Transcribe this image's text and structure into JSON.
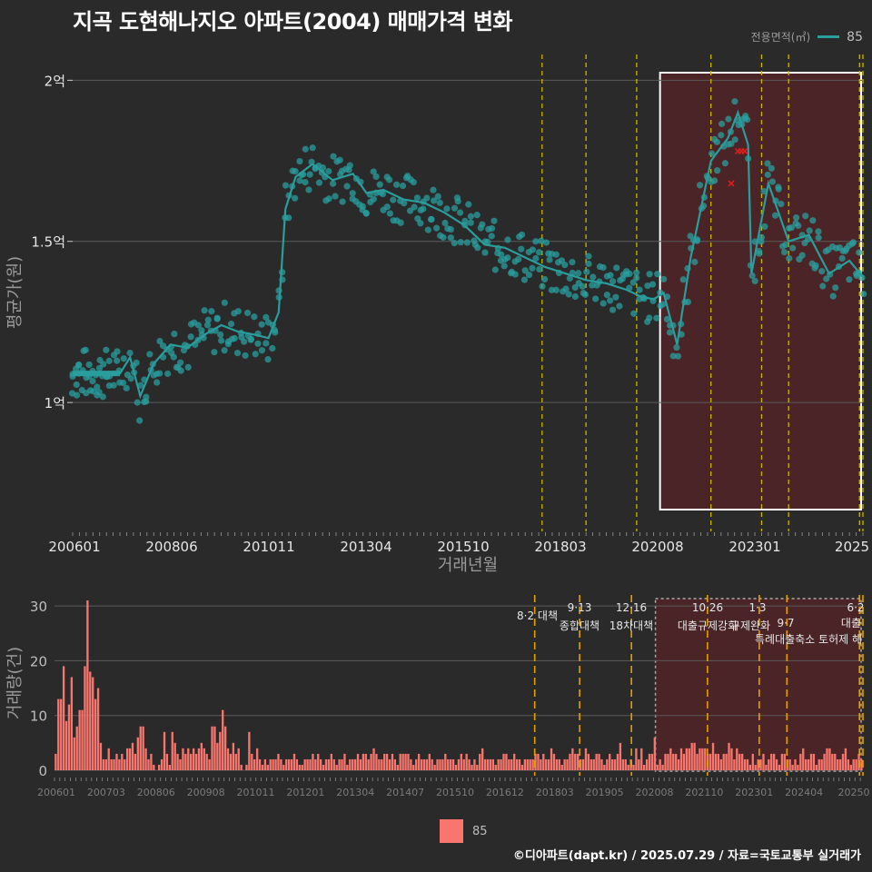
{
  "title": "지곡 도현해나지오 아파트(2004) 매매가격 변화",
  "legend_top": {
    "title": "전용면적(㎡)",
    "entry": "85",
    "color": "#2a9d9d"
  },
  "legend_bottom": {
    "entry": "85",
    "color": "#f8766d"
  },
  "caption": "©디아파트(dapt.kr) / 2025.07.29 / 자료=국토교통부 실거래가",
  "chart_data": [
    {
      "type": "line",
      "name": "price",
      "xlabel": "거래년월",
      "ylabel": "평균가(원)",
      "x_range": [
        "2006-01",
        "2025-07"
      ],
      "ylim": [
        0.6,
        2.08
      ],
      "y_ticks": [
        1.0,
        1.5,
        2.0
      ],
      "y_tick_labels": [
        "1억",
        "1.5억",
        "2억"
      ],
      "x_tick_labels": [
        "200601",
        "200806",
        "201011",
        "201304",
        "201510",
        "201803",
        "202008",
        "202301",
        "2025"
      ],
      "highlight_range": [
        "2020-08",
        "2025-07"
      ],
      "policy_lines": [
        "2017-08",
        "2018-09",
        "2019-12",
        "2021-10",
        "2023-01",
        "2023-09",
        "2025-06",
        "2025-07"
      ],
      "series": [
        {
          "values": [
            [
              "2006-01",
              1.09
            ],
            [
              "2006-06",
              1.09
            ],
            [
              "2007-03",
              1.09
            ],
            [
              "2007-06",
              1.14
            ],
            [
              "2007-09",
              1.02
            ],
            [
              "2008-01",
              1.12
            ],
            [
              "2008-06",
              1.18
            ],
            [
              "2008-11",
              1.17
            ],
            [
              "2009-04",
              1.21
            ],
            [
              "2009-09",
              1.24
            ],
            [
              "2010-02",
              1.22
            ],
            [
              "2010-07",
              1.21
            ],
            [
              "2010-11",
              1.2
            ],
            [
              "2011-02",
              1.28
            ],
            [
              "2011-04",
              1.6
            ],
            [
              "2011-07",
              1.7
            ],
            [
              "2011-12",
              1.74
            ],
            [
              "2012-06",
              1.69
            ],
            [
              "2012-12",
              1.71
            ],
            [
              "2013-04",
              1.65
            ],
            [
              "2013-09",
              1.66
            ],
            [
              "2014-03",
              1.63
            ],
            [
              "2014-09",
              1.62
            ],
            [
              "2015-03",
              1.59
            ],
            [
              "2015-09",
              1.55
            ],
            [
              "2016-03",
              1.49
            ],
            [
              "2016-09",
              1.48
            ],
            [
              "2017-03",
              1.45
            ],
            [
              "2017-09",
              1.42
            ],
            [
              "2018-03",
              1.4
            ],
            [
              "2018-09",
              1.38
            ],
            [
              "2019-03",
              1.37
            ],
            [
              "2019-09",
              1.35
            ],
            [
              "2020-01",
              1.33
            ],
            [
              "2020-05",
              1.32
            ],
            [
              "2020-08",
              1.34
            ],
            [
              "2020-12",
              1.18
            ],
            [
              "2021-04",
              1.45
            ],
            [
              "2021-10",
              1.75
            ],
            [
              "2022-03",
              1.82
            ],
            [
              "2022-06",
              1.9
            ],
            [
              "2022-09",
              1.8
            ],
            [
              "2022-10",
              1.4
            ],
            [
              "2023-03",
              1.68
            ],
            [
              "2023-09",
              1.5
            ],
            [
              "2024-03",
              1.52
            ],
            [
              "2024-09",
              1.4
            ],
            [
              "2025-03",
              1.44
            ],
            [
              "2025-07",
              1.39
            ]
          ]
        }
      ],
      "cancelled_marks": [
        [
          "2022-04",
          1.68
        ],
        [
          "2022-06",
          1.78
        ],
        [
          "2022-07",
          1.78
        ],
        [
          "2022-08",
          1.78
        ]
      ]
    },
    {
      "type": "bar",
      "name": "volume",
      "xlabel": "",
      "ylabel": "거래량(건)",
      "ylim": [
        0,
        32
      ],
      "y_ticks": [
        0,
        10,
        20,
        30
      ],
      "x_tick_labels": [
        "200601",
        "200703",
        "200806",
        "200908",
        "201011",
        "201201",
        "201304",
        "201407",
        "201510",
        "201612",
        "201803",
        "201905",
        "202008",
        "202110",
        "202301",
        "202404",
        "20250"
      ],
      "annotations": [
        {
          "date": "2017-08",
          "label": "8·2 대책"
        },
        {
          "date": "2018-09",
          "label": "9·13"
        },
        {
          "date": "2018-09",
          "label": "종합대책"
        },
        {
          "date": "2019-12",
          "label": "12·16"
        },
        {
          "date": "2019-12",
          "label": "18차대책"
        },
        {
          "date": "2021-10",
          "label": "10·26"
        },
        {
          "date": "2021-10",
          "label": "대출규제강화"
        },
        {
          "date": "2023-01",
          "label": "1·3"
        },
        {
          "date": "2023-01",
          "label": "규제완화"
        },
        {
          "date": "2023-09",
          "label": "9·7"
        },
        {
          "date": "2023-09",
          "label": "특례대출축소 토허제 해"
        },
        {
          "date": "2025-06",
          "label": "6·2"
        },
        {
          "date": "2025-06",
          "label": "대출"
        }
      ],
      "values": [
        3,
        13,
        13,
        19,
        9,
        12,
        17,
        6,
        8,
        11,
        11,
        19,
        31,
        18,
        17,
        13,
        15,
        5,
        2,
        2,
        4,
        2,
        2,
        3,
        2,
        3,
        2,
        4,
        4,
        5,
        3,
        6,
        8,
        8,
        4,
        2,
        3,
        1,
        0,
        1,
        2,
        7,
        3,
        1,
        7,
        5,
        3,
        2,
        4,
        3,
        4,
        3,
        4,
        3,
        4,
        5,
        4,
        3,
        2,
        8,
        8,
        5,
        7,
        11,
        8,
        4,
        3,
        5,
        3,
        4,
        1,
        0,
        1,
        7,
        3,
        2,
        4,
        2,
        1,
        2,
        1,
        2,
        2,
        2,
        3,
        2,
        1,
        2,
        2,
        2,
        3,
        2,
        1,
        1,
        2,
        2,
        2,
        3,
        2,
        3,
        2,
        1,
        2,
        2,
        3,
        2,
        1,
        2,
        2,
        3,
        1,
        2,
        2,
        2,
        3,
        2,
        3,
        3,
        2,
        3,
        4,
        3,
        2,
        2,
        3,
        3,
        2,
        3,
        2,
        1,
        3,
        3,
        3,
        3,
        2,
        1,
        2,
        3,
        2,
        2,
        2,
        3,
        2,
        1,
        2,
        2,
        2,
        3,
        2,
        2,
        2,
        1,
        2,
        3,
        2,
        3,
        2,
        1,
        2,
        1,
        3,
        4,
        2,
        2,
        2,
        2,
        1,
        2,
        2,
        3,
        3,
        2,
        2,
        3,
        2,
        2,
        1,
        2,
        2,
        2,
        2,
        3,
        3,
        2,
        3,
        2,
        2,
        4,
        3,
        2,
        2,
        1,
        2,
        2,
        3,
        4,
        3,
        3,
        2,
        2,
        4,
        3,
        2,
        2,
        3,
        3,
        2,
        1,
        2,
        3,
        2,
        2,
        3,
        5,
        2,
        2,
        1,
        2,
        1,
        4,
        2,
        4,
        1,
        2,
        3,
        3,
        6,
        1,
        2,
        1,
        3,
        3,
        4,
        3,
        3,
        2,
        4,
        3,
        4,
        4,
        5,
        5,
        3,
        4,
        4,
        4,
        3,
        3,
        5,
        3,
        3,
        2,
        3,
        3,
        5,
        4,
        2,
        4,
        3,
        3,
        2,
        2,
        1,
        3,
        1,
        2,
        2,
        3,
        1,
        2,
        3,
        3,
        2,
        1,
        3,
        3,
        2,
        2,
        1,
        2,
        1,
        3,
        4,
        2,
        2,
        3,
        3,
        1,
        2,
        2,
        3,
        4,
        4,
        3,
        3,
        2,
        2,
        3,
        4,
        2,
        1,
        2,
        2,
        3,
        2
      ]
    }
  ]
}
